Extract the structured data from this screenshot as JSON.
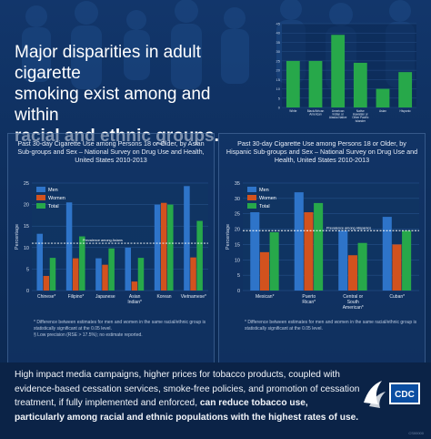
{
  "headline": {
    "line1": "Major disparities in adult cigarette",
    "line2": "smoking exist among and within",
    "line3": "racial and ethnic groups."
  },
  "colors": {
    "men": "#2e74c9",
    "women": "#d2521e",
    "total": "#27a84a",
    "background": "#0e2f5e"
  },
  "chart_data": [
    {
      "type": "bar",
      "title": "",
      "categories": [
        "White",
        "Black/African American",
        "American Indian or Alaska Native",
        "Native Hawaiian or Other Pacific Islander",
        "Asian",
        "Hispanic"
      ],
      "values": [
        25,
        25,
        39,
        24,
        10,
        19
      ],
      "ylim": [
        0,
        45
      ],
      "yticks": [
        "45",
        "40",
        "35",
        "30",
        "25",
        "20",
        "15",
        "10",
        "5",
        "0"
      ],
      "series_color": "#27a84a"
    },
    {
      "type": "bar",
      "title": "Past 30-day Cigarette Use among Persons 18 or Older, by Asian Sub-groups and Sex – National Survey on Drug Use and Health, United States 2010-2013",
      "ylabel": "Percentage",
      "ylim": [
        0,
        25
      ],
      "yticks": [
        "0",
        "5",
        "10",
        "15",
        "20",
        "25"
      ],
      "categories": [
        "Chinese*",
        "Filipino*",
        "Japanese",
        "Asian Indian*",
        "Korean",
        "Vietnamese*"
      ],
      "series": [
        {
          "name": "Men",
          "values": [
            13.2,
            20.5,
            7.5,
            10.0,
            20.0,
            24.3
          ]
        },
        {
          "name": "Women",
          "values": [
            3.4,
            7.5,
            6.0,
            2.1,
            20.4,
            7.7
          ]
        },
        {
          "name": "Total",
          "values": [
            7.6,
            12.6,
            9.8,
            7.6,
            20.0,
            16.2
          ]
        }
      ],
      "reference_line": {
        "value": 11,
        "label": "Prevalence among Asians"
      },
      "footnotes": [
        "* Difference between estimates for men and women in the same racial/ethnic group is statistically significant at the 0.05 level.",
        "§ Low precision (RSE > 17.5%); no estimate reported."
      ]
    },
    {
      "type": "bar",
      "title": "Past 30-day Cigarette Use among Persons 18 or Older, by Hispanic Sub-groups and Sex – National Survey on Drug Use and Health, United States 2010-2013",
      "ylabel": "Percentage",
      "ylim": [
        0,
        35
      ],
      "yticks": [
        "0",
        "5",
        "10",
        "15",
        "20",
        "25",
        "30",
        "35"
      ],
      "categories": [
        "Mexican*",
        "Puerto Rican*",
        "Central or South American*",
        "Cuban*"
      ],
      "series": [
        {
          "name": "Men",
          "values": [
            25.5,
            32.0,
            19.5,
            24.0
          ]
        },
        {
          "name": "Women",
          "values": [
            12.5,
            25.5,
            11.5,
            15.0
          ]
        },
        {
          "name": "Total",
          "values": [
            19.0,
            28.5,
            15.5,
            19.5
          ]
        }
      ],
      "reference_line": {
        "value": 19.5,
        "label": "Prevalence among Hispanics"
      },
      "footnotes": [
        "* Difference between estimates for men and women in the same racial/ethnic group is statistically significant at the 0.05 level."
      ]
    }
  ],
  "bottom": {
    "text": "High impact media campaigns, higher prices for tobacco products, coupled with evidence-based cessation services, smoke-free policies, and promotion of cessation treatment, if fully implemented and enforced, ",
    "bold": "can reduce tobacco use, particularly among racial and ethnic populations with the highest rates of use.",
    "cdc_label": "CDC",
    "code": "CS00000"
  }
}
